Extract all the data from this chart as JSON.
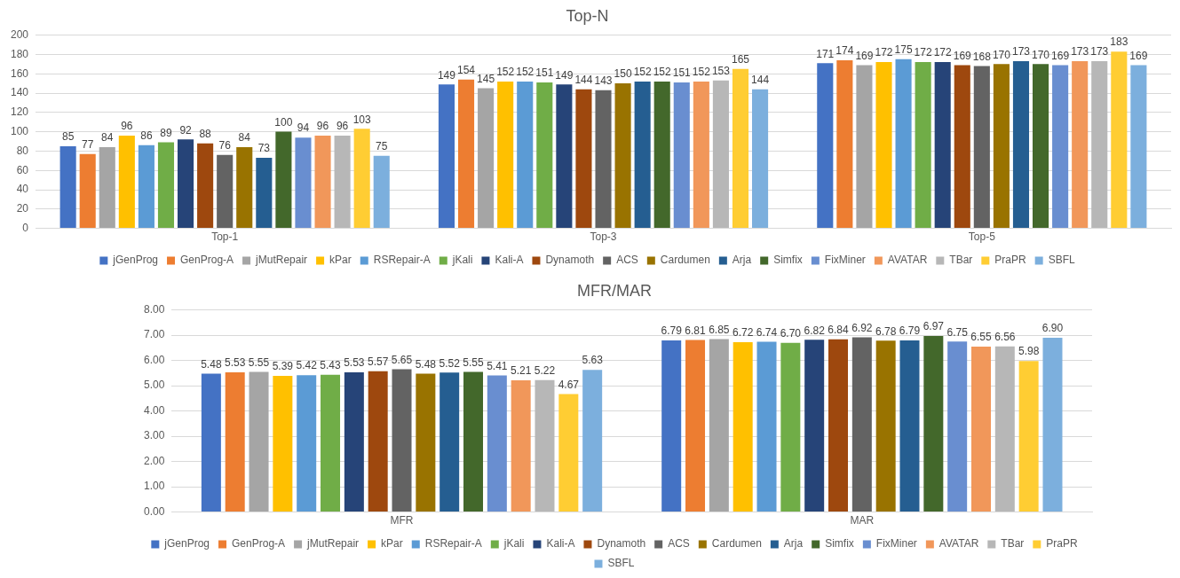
{
  "chart_data": [
    {
      "type": "bar",
      "title": "Top-N",
      "categories": [
        "Top-1",
        "Top-3",
        "Top-5"
      ],
      "ylim": [
        0,
        200
      ],
      "yticks": [
        0,
        20,
        40,
        60,
        80,
        100,
        120,
        140,
        160,
        180,
        200
      ],
      "grid": "y",
      "legend": "bottom",
      "data_labels": true,
      "series": [
        {
          "name": "jGenProg",
          "color": "#4472c4",
          "values": [
            85,
            149,
            171
          ]
        },
        {
          "name": "GenProg-A",
          "color": "#ed7d31",
          "values": [
            77,
            154,
            174
          ]
        },
        {
          "name": "jMutRepair",
          "color": "#a5a5a5",
          "values": [
            84,
            145,
            169
          ]
        },
        {
          "name": "kPar",
          "color": "#ffc000",
          "values": [
            96,
            152,
            172
          ]
        },
        {
          "name": "RSRepair-A",
          "color": "#5b9bd5",
          "values": [
            86,
            152,
            175
          ]
        },
        {
          "name": "jKali",
          "color": "#70ad47",
          "values": [
            89,
            151,
            172
          ]
        },
        {
          "name": "Kali-A",
          "color": "#264478",
          "values": [
            92,
            149,
            172
          ]
        },
        {
          "name": "Dynamoth",
          "color": "#9e480e",
          "values": [
            88,
            144,
            169
          ]
        },
        {
          "name": "ACS",
          "color": "#636363",
          "values": [
            76,
            143,
            168
          ]
        },
        {
          "name": "Cardumen",
          "color": "#997300",
          "values": [
            84,
            150,
            170
          ]
        },
        {
          "name": "Arja",
          "color": "#255e91",
          "values": [
            73,
            152,
            173
          ]
        },
        {
          "name": "Simfix",
          "color": "#43682b",
          "values": [
            100,
            152,
            170
          ]
        },
        {
          "name": "FixMiner",
          "color": "#698ed0",
          "values": [
            94,
            151,
            169
          ]
        },
        {
          "name": "AVATAR",
          "color": "#f1975a",
          "values": [
            96,
            152,
            173
          ]
        },
        {
          "name": "TBar",
          "color": "#b7b7b7",
          "values": [
            96,
            153,
            173
          ]
        },
        {
          "name": "PraPR",
          "color": "#ffcd33",
          "values": [
            103,
            165,
            183
          ]
        },
        {
          "name": "SBFL",
          "color": "#7cafdd",
          "values": [
            75,
            144,
            169
          ]
        }
      ]
    },
    {
      "type": "bar",
      "title": "MFR/MAR",
      "categories": [
        "MFR",
        "MAR"
      ],
      "ylim": [
        0,
        8
      ],
      "yticks": [
        {
          "value": 0,
          "label": "0.00"
        },
        {
          "value": 1,
          "label": "1.00"
        },
        {
          "value": 2,
          "label": "2.00"
        },
        {
          "value": 3,
          "label": "3.00"
        },
        {
          "value": 4,
          "label": "4.00"
        },
        {
          "value": 5,
          "label": "5.00"
        },
        {
          "value": 6,
          "label": "6.00"
        },
        {
          "value": 7,
          "label": "7.00"
        },
        {
          "value": 8,
          "label": "8.00"
        }
      ],
      "grid": "y",
      "legend": "bottom",
      "series": [
        {
          "name": "jGenProg",
          "color": "#4472c4",
          "values": [
            5.48,
            6.79
          ],
          "value_labels": [
            "5.48",
            "6.79"
          ]
        },
        {
          "name": "GenProg-A",
          "color": "#ed7d31",
          "values": [
            5.53,
            6.81
          ],
          "value_labels": [
            "5.53",
            "6.81"
          ]
        },
        {
          "name": "jMutRepair",
          "color": "#a5a5a5",
          "values": [
            5.55,
            6.85
          ],
          "value_labels": [
            "5.55",
            "6.85"
          ]
        },
        {
          "name": "kPar",
          "color": "#ffc000",
          "values": [
            5.39,
            6.72
          ],
          "value_labels": [
            "5.39",
            "6.72"
          ]
        },
        {
          "name": "RSRepair-A",
          "color": "#5b9bd5",
          "values": [
            5.42,
            6.74
          ],
          "value_labels": [
            "5.42",
            "6.74"
          ]
        },
        {
          "name": "jKali",
          "color": "#70ad47",
          "values": [
            5.43,
            6.7
          ],
          "value_labels": [
            "5.43",
            "6.70"
          ]
        },
        {
          "name": "Kali-A",
          "color": "#264478",
          "values": [
            5.53,
            6.82
          ],
          "value_labels": [
            "5.53",
            "6.82"
          ]
        },
        {
          "name": "Dynamoth",
          "color": "#9e480e",
          "values": [
            5.57,
            6.84
          ],
          "value_labels": [
            "5.57",
            "6.84"
          ]
        },
        {
          "name": "ACS",
          "color": "#636363",
          "values": [
            5.65,
            6.92
          ],
          "value_labels": [
            "5.65",
            "6.92"
          ]
        },
        {
          "name": "Cardumen",
          "color": "#997300",
          "values": [
            5.48,
            6.78
          ],
          "value_labels": [
            "5.48",
            "6.78"
          ]
        },
        {
          "name": "Arja",
          "color": "#255e91",
          "values": [
            5.52,
            6.79
          ],
          "value_labels": [
            "5.52",
            "6.79"
          ]
        },
        {
          "name": "Simfix",
          "color": "#43682b",
          "values": [
            5.55,
            6.97
          ],
          "value_labels": [
            "5.55",
            "6.97"
          ]
        },
        {
          "name": "FixMiner",
          "color": "#698ed0",
          "values": [
            5.41,
            6.75
          ],
          "value_labels": [
            "5.41",
            "6.75"
          ]
        },
        {
          "name": "AVATAR",
          "color": "#f1975a",
          "values": [
            5.21,
            6.55
          ],
          "value_labels": [
            "5.21",
            "6.55"
          ]
        },
        {
          "name": "TBar",
          "color": "#b7b7b7",
          "values": [
            5.22,
            6.56
          ],
          "value_labels": [
            "5.22",
            "6.56"
          ]
        },
        {
          "name": "PraPR",
          "color": "#ffcd33",
          "values": [
            4.67,
            5.98
          ],
          "value_labels": [
            "4.67",
            "5.98"
          ]
        },
        {
          "name": "SBFL",
          "color": "#7cafdd",
          "values": [
            5.63,
            6.9
          ],
          "value_labels": [
            "5.63",
            "6.90"
          ]
        }
      ]
    }
  ]
}
